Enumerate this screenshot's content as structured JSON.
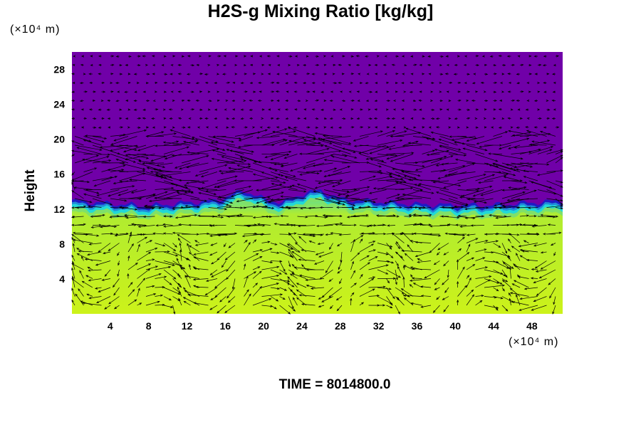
{
  "chart_data": {
    "type": "heatmap",
    "title": "H2S-g Mixing Ratio [kg/kg]",
    "ylabel": "Height",
    "xunit": "(×10⁴ m)",
    "yunit": "(×10⁴ m)",
    "x_ticks": [
      4,
      8,
      12,
      16,
      20,
      24,
      28,
      32,
      36,
      40,
      44,
      48
    ],
    "y_ticks": [
      4,
      8,
      12,
      16,
      20,
      24,
      28
    ],
    "xlim": [
      0,
      51.2
    ],
    "ylim": [
      0,
      30
    ],
    "time_label": "TIME = 8014800.0",
    "layer_top": [
      [
        0,
        12.6
      ],
      [
        4,
        12.3
      ],
      [
        8,
        12.0
      ],
      [
        12,
        12.4
      ],
      [
        15,
        12.6
      ],
      [
        18,
        13.8
      ],
      [
        20,
        12.8
      ],
      [
        22,
        12.4
      ],
      [
        24,
        13.4
      ],
      [
        26,
        13.8
      ],
      [
        28,
        12.8
      ],
      [
        32,
        12.5
      ],
      [
        36,
        12.2
      ],
      [
        40,
        12.1
      ],
      [
        44,
        12.1
      ],
      [
        48,
        12.4
      ],
      [
        51.2,
        12.6
      ]
    ],
    "colors": {
      "upper": "#7000a8",
      "band_dark": "#1e1cc4",
      "band_mid": "#1f8ad8",
      "band_cyan": "#22d8d8",
      "band_green": "#7fe06a",
      "lower": "#ccf21a"
    },
    "vector_field": "wind arrows"
  }
}
